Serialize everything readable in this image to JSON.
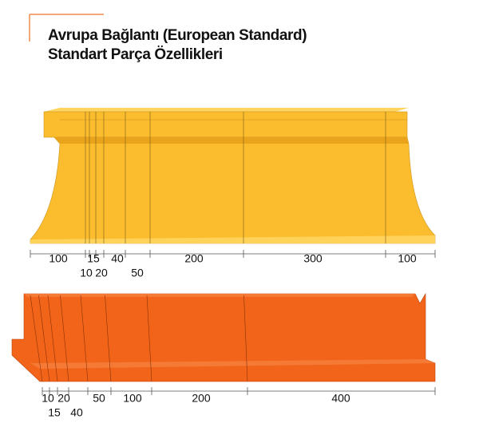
{
  "header": {
    "title_line1": "Avrupa Bağlantı (European Standard)",
    "title_line2": "Standart Parça Özellikleri"
  },
  "yellow_tool": {
    "segments": [
      100,
      10,
      15,
      20,
      40,
      50,
      200,
      300,
      100
    ]
  },
  "orange_tool": {
    "segments": [
      10,
      15,
      20,
      40,
      50,
      100,
      200,
      400
    ]
  }
}
